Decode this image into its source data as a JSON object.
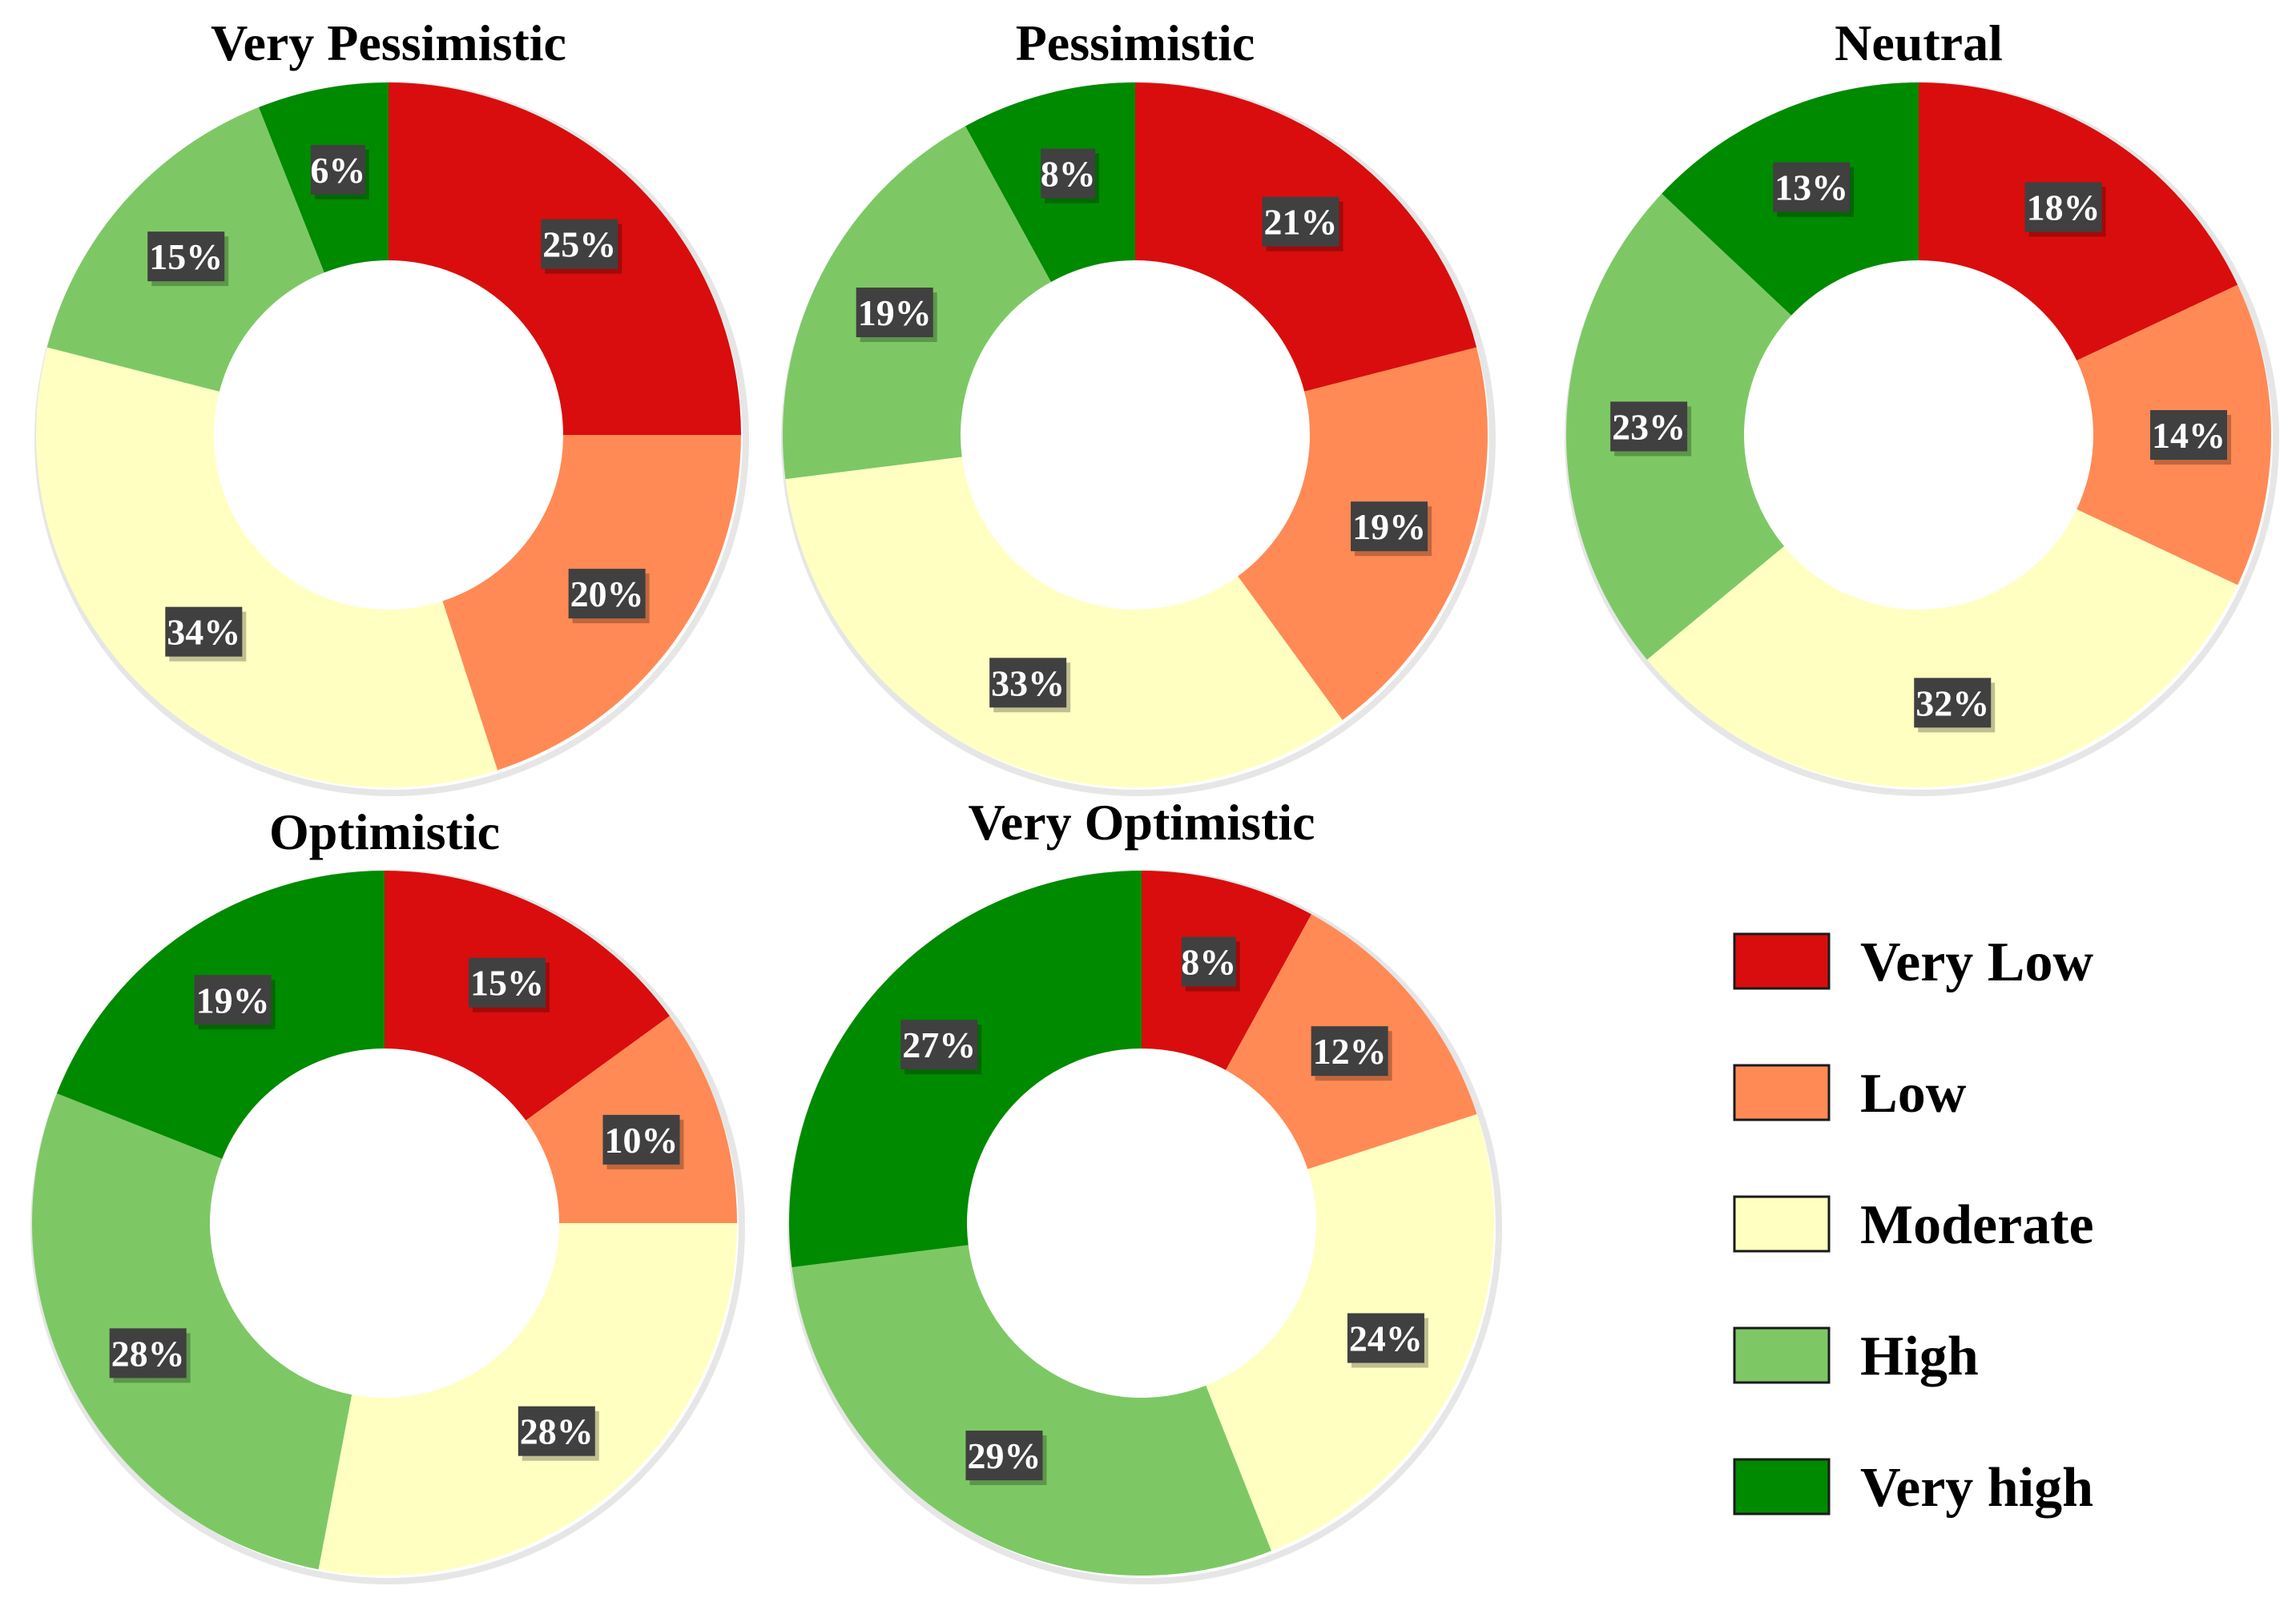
{
  "categories": [
    "Very Low",
    "Low",
    "Moderate",
    "High",
    "Very high"
  ],
  "colors": {
    "Very Low": "#d90d0d",
    "Low": "#ff8a55",
    "Moderate": "#ffffc2",
    "High": "#7dc865",
    "Very high": "#008a00",
    "label_box": "#404040",
    "label_text": "#ffffff"
  },
  "chart_data": [
    {
      "type": "pie",
      "variant": "donut",
      "title": "Very Pessimistic",
      "categories": [
        "Very Low",
        "Low",
        "Moderate",
        "High",
        "Very high"
      ],
      "values": [
        25,
        20,
        34,
        15,
        6
      ],
      "labels": [
        "25%",
        "20%",
        "34%",
        "15%",
        "6%"
      ]
    },
    {
      "type": "pie",
      "variant": "donut",
      "title": "Pessimistic",
      "categories": [
        "Very Low",
        "Low",
        "Moderate",
        "High",
        "Very high"
      ],
      "values": [
        21,
        19,
        33,
        19,
        8
      ],
      "labels": [
        "21%",
        "19%",
        "33%",
        "19%",
        "8%"
      ]
    },
    {
      "type": "pie",
      "variant": "donut",
      "title": "Neutral",
      "categories": [
        "Very Low",
        "Low",
        "Moderate",
        "High",
        "Very high"
      ],
      "values": [
        18,
        14,
        32,
        23,
        13
      ],
      "labels": [
        "18%",
        "14%",
        "32%",
        "23%",
        "13%"
      ]
    },
    {
      "type": "pie",
      "variant": "donut",
      "title": "Optimistic",
      "categories": [
        "Very Low",
        "Low",
        "Moderate",
        "High",
        "Very high"
      ],
      "values": [
        15,
        10,
        28,
        28,
        19
      ],
      "labels": [
        "15%",
        "10%",
        "28%",
        "28%",
        "19%"
      ]
    },
    {
      "type": "pie",
      "variant": "donut",
      "title": "Very Optimistic",
      "categories": [
        "Very Low",
        "Low",
        "Moderate",
        "High",
        "Very high"
      ],
      "values": [
        8,
        12,
        24,
        29,
        27
      ],
      "labels": [
        "8%",
        "12%",
        "24%",
        "29%",
        "27%"
      ]
    }
  ],
  "legend": {
    "placement": "bottom-right",
    "items": [
      "Very Low",
      "Low",
      "Moderate",
      "High",
      "Very high"
    ]
  }
}
